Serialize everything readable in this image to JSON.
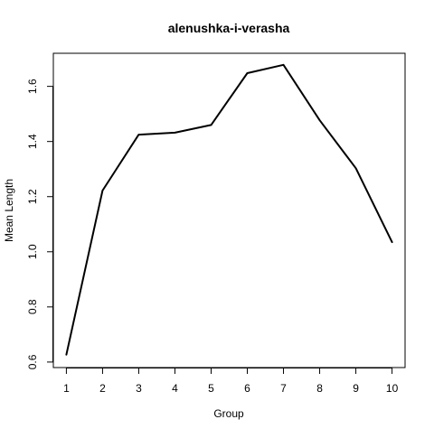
{
  "chart_data": {
    "type": "line",
    "title": "alenushka-i-verasha",
    "xlabel": "Group",
    "ylabel": "Mean Length",
    "x": [
      1,
      2,
      3,
      4,
      5,
      6,
      7,
      8,
      9,
      10
    ],
    "x_tick_labels": [
      "1",
      "2",
      "3",
      "4",
      "5",
      "6",
      "7",
      "8",
      "9",
      "10"
    ],
    "y_ticks": [
      0.6,
      0.8,
      1.0,
      1.2,
      1.4,
      1.6
    ],
    "y_tick_labels": [
      "0.6",
      "0.8",
      "1.0",
      "1.2",
      "1.4",
      "1.6"
    ],
    "xlim": [
      0.64,
      10.36
    ],
    "ylim": [
      0.58,
      1.72
    ],
    "series": [
      {
        "values": [
          0.627,
          1.222,
          1.425,
          1.432,
          1.46,
          1.648,
          1.678,
          1.477,
          1.303,
          1.035
        ]
      }
    ],
    "line_color": "#000000",
    "grid": false,
    "legend": "none"
  }
}
